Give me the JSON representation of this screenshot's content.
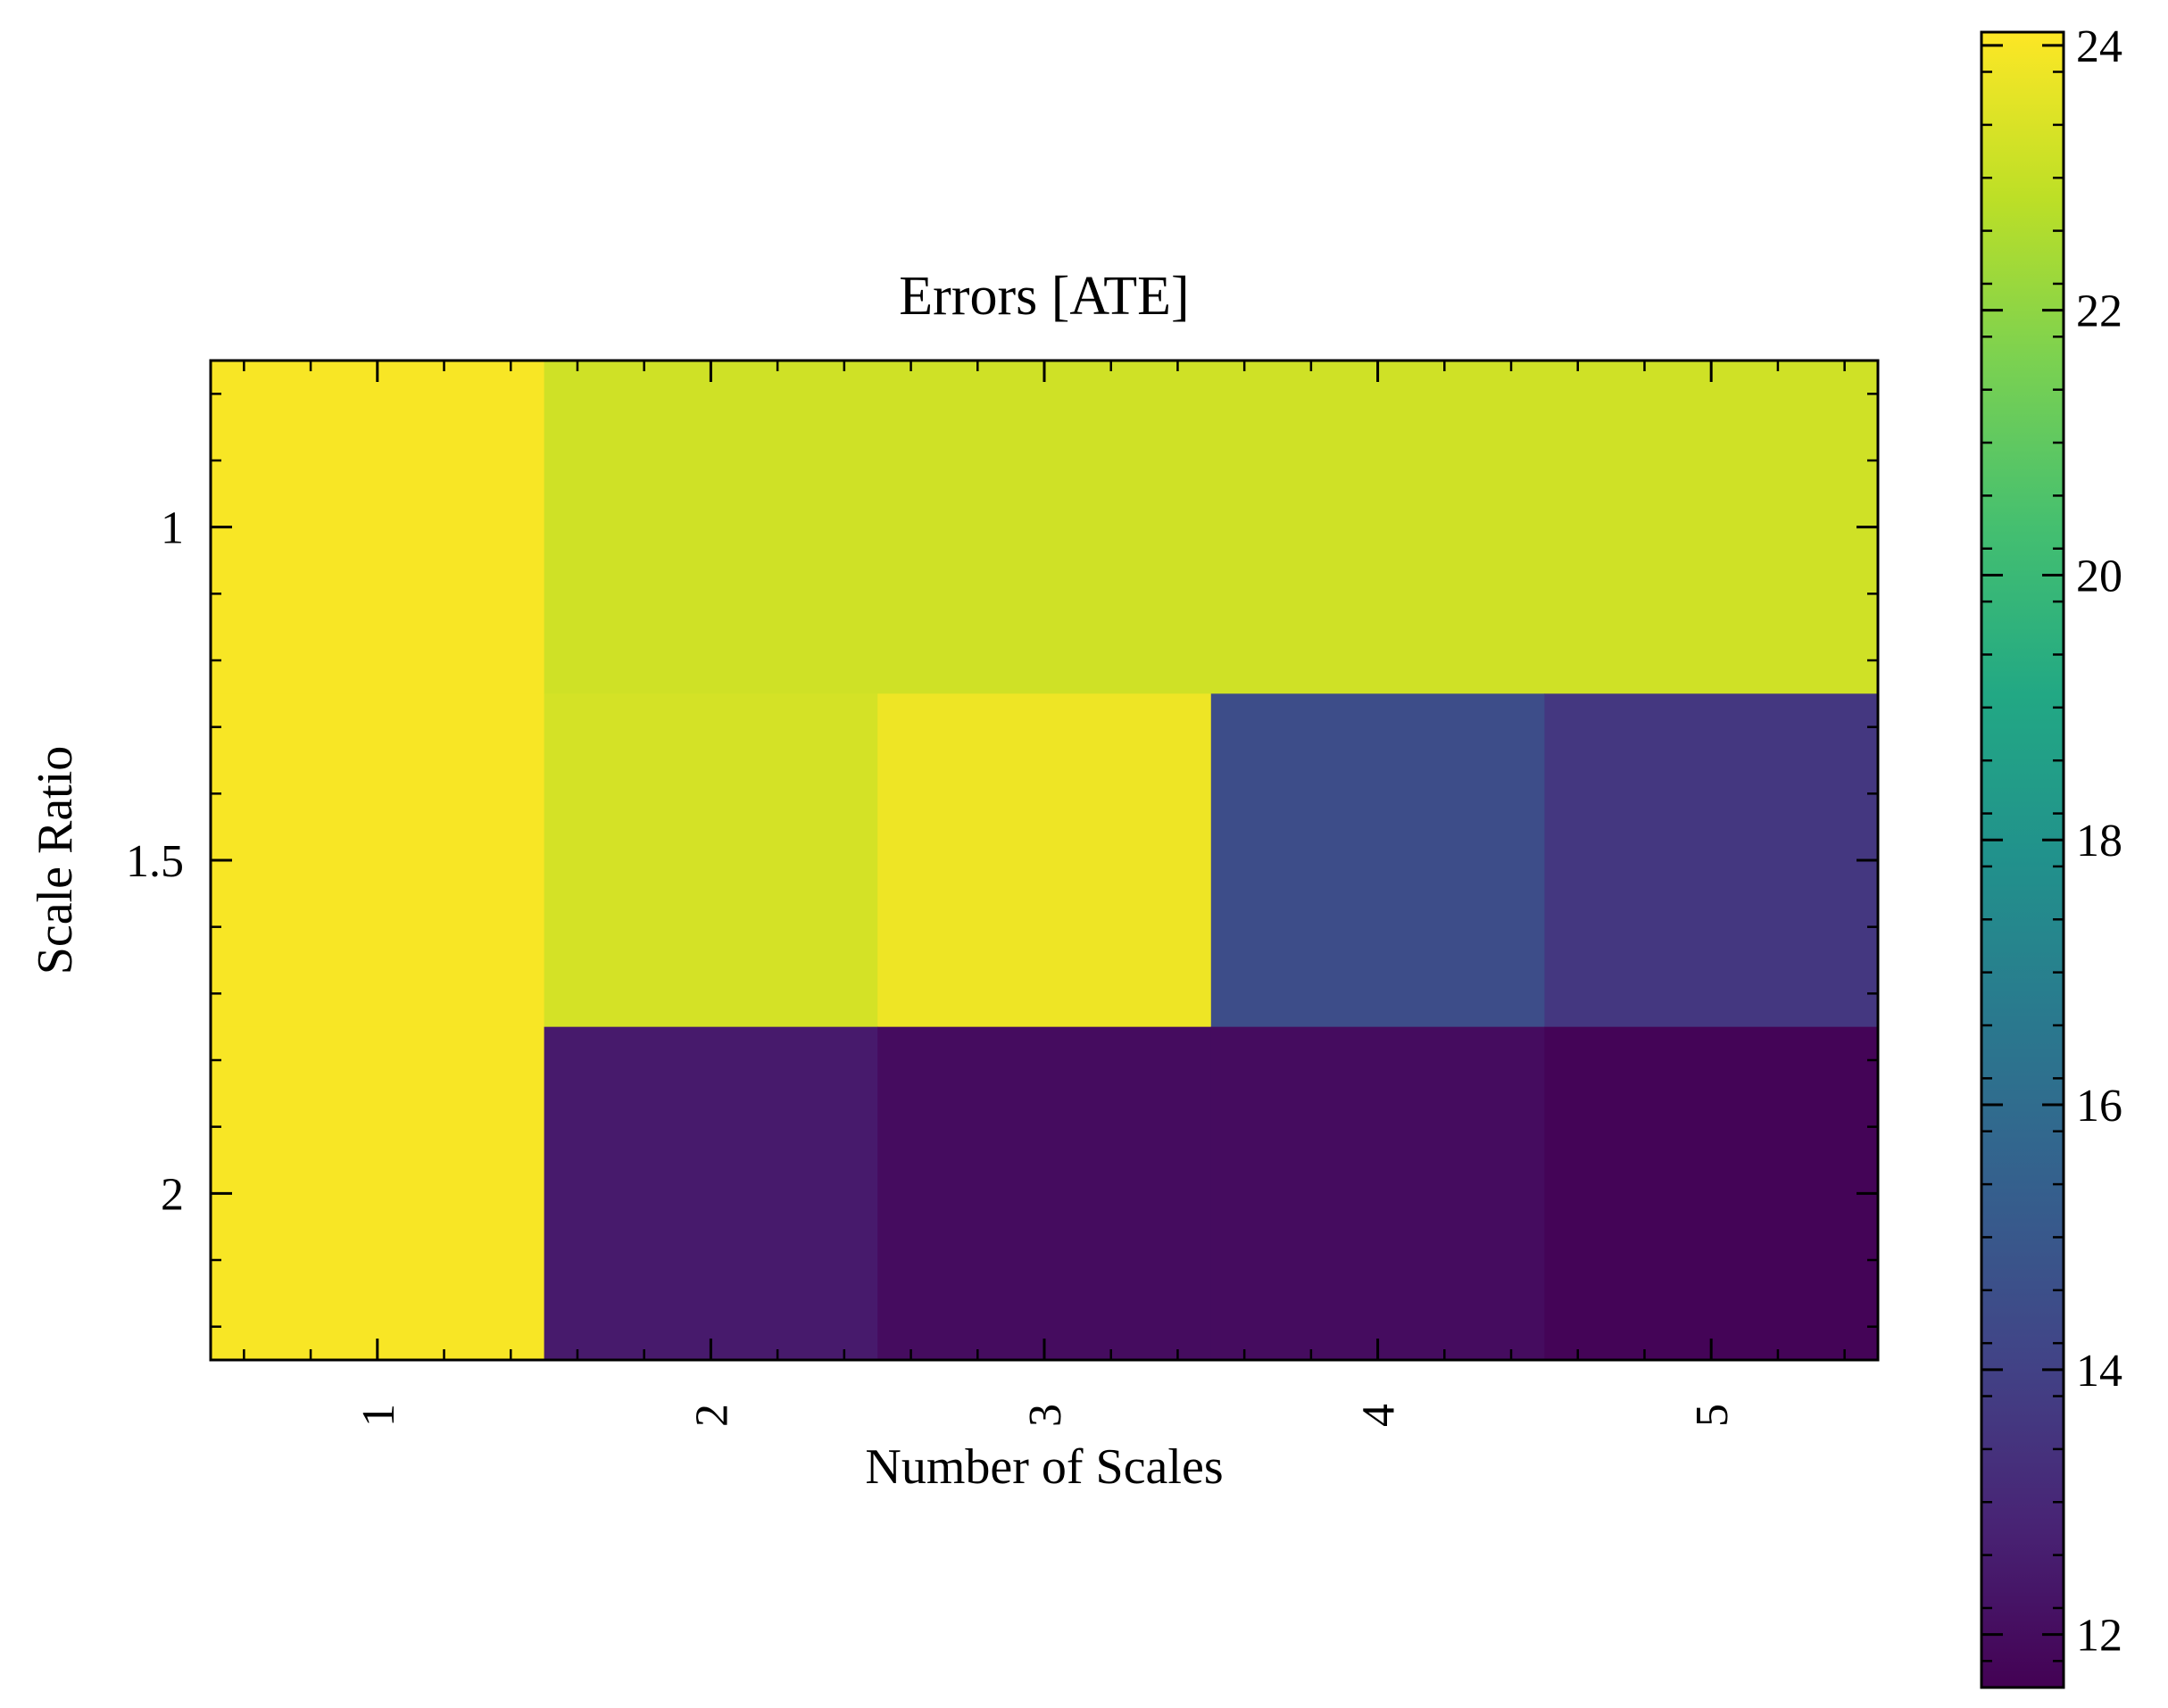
{
  "chart_data": {
    "type": "heatmap",
    "title": "Errors [ATE]",
    "xlabel": "Number of Scales",
    "ylabel": "Scale Ratio",
    "x_categories": [
      "1",
      "2",
      "3",
      "4",
      "5"
    ],
    "y_categories": [
      "1",
      "1.5",
      "2"
    ],
    "values": [
      [
        24.0,
        23.2,
        23.2,
        23.2,
        23.2
      ],
      [
        24.0,
        23.3,
        23.8,
        14.5,
        13.6
      ],
      [
        24.0,
        12.5,
        12.0,
        12.0,
        11.7
      ]
    ],
    "colormap": "viridis",
    "colorbar": {
      "vmin": 11.6,
      "vmax": 24.1,
      "ticks": [
        12,
        14,
        16,
        18,
        20,
        22,
        24
      ],
      "tick_labels": [
        "12",
        "14",
        "16",
        "18",
        "20",
        "22",
        "24"
      ]
    },
    "grid": false,
    "x_tick_rotation": "vertical"
  }
}
